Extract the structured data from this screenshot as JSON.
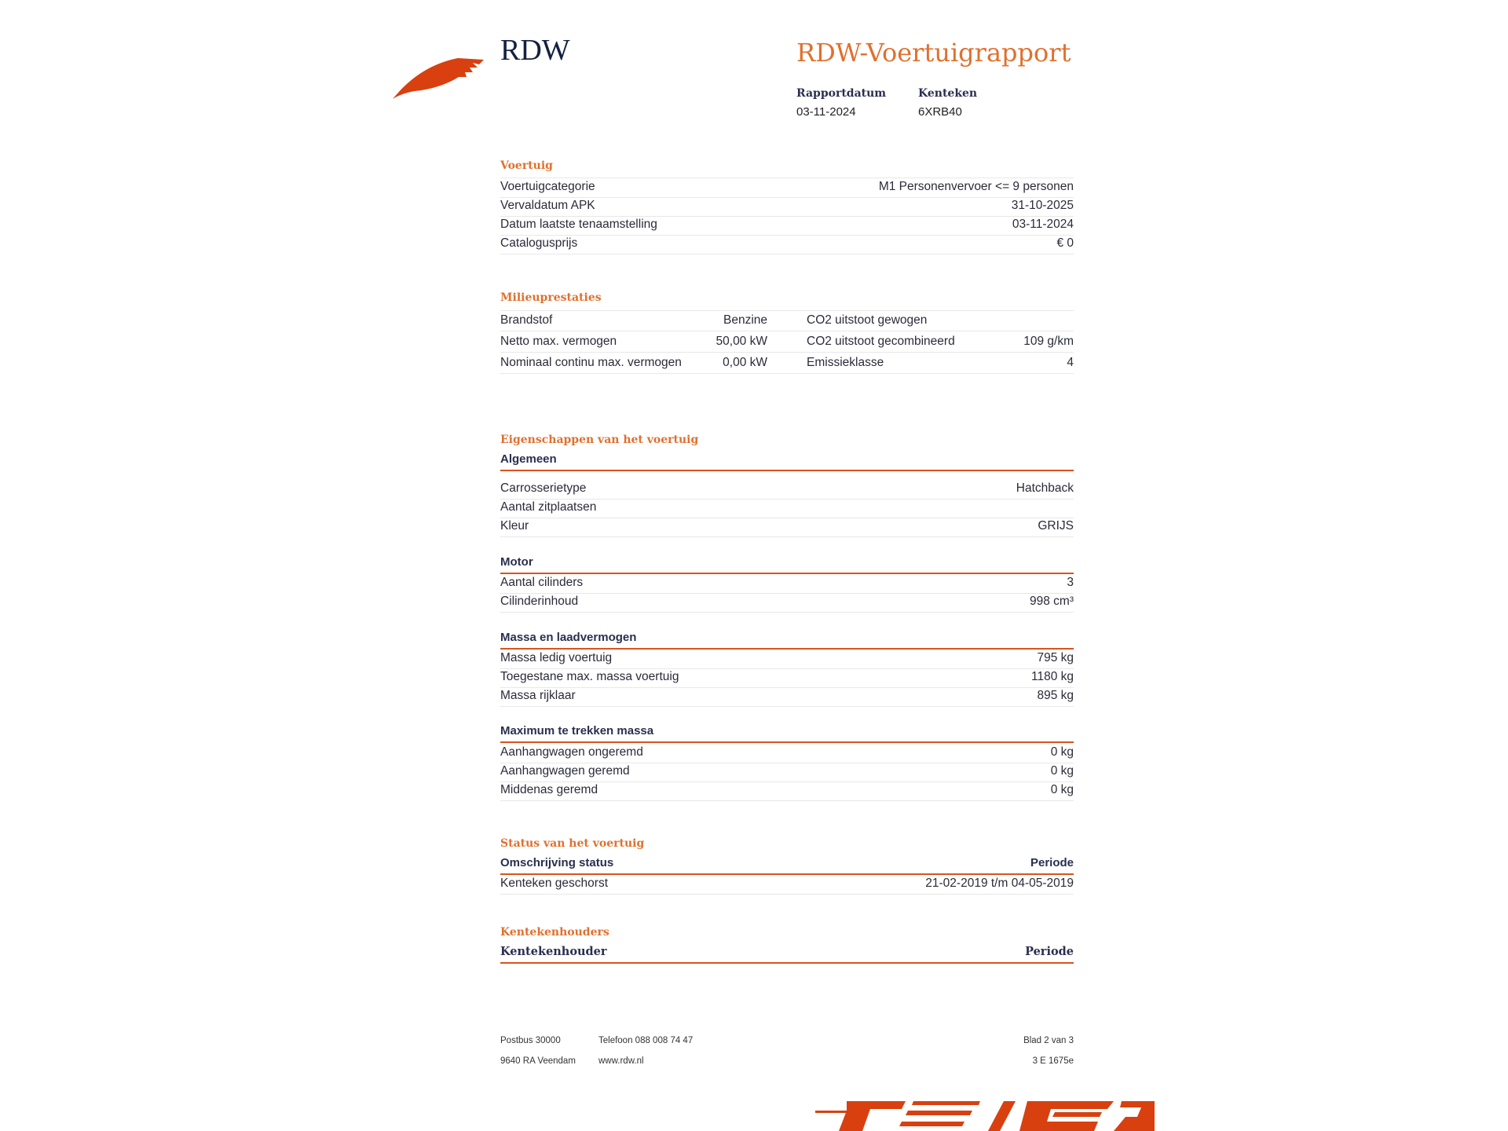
{
  "header": {
    "brand": "RDW",
    "title": "RDW-Voertuigrapport",
    "report_date_label": "Rapportdatum",
    "report_date": "03-11-2024",
    "plate_label": "Kenteken",
    "plate": "6XRB40"
  },
  "vehicle": {
    "heading": "Voertuig",
    "rows": [
      {
        "label": "Voertuigcategorie",
        "value": "M1 Personenvervoer <= 9 personen"
      },
      {
        "label": "Vervaldatum APK",
        "value": "31-10-2025"
      },
      {
        "label": "Datum laatste tenaamstelling",
        "value": "03-11-2024"
      },
      {
        "label": "Catalogusprijs",
        "value": "€ 0"
      }
    ]
  },
  "milieu": {
    "heading": "Milieuprestaties",
    "rows": [
      {
        "label": "Brandstof",
        "value": "Benzine",
        "label2": "CO2 uitstoot gewogen",
        "value2": ""
      },
      {
        "label": "Netto max. vermogen",
        "value": "50,00 kW",
        "label2": "CO2 uitstoot gecombineerd",
        "value2": "109 g/km"
      },
      {
        "label": "Nominaal continu max. vermogen",
        "value": "0,00 kW",
        "label2": "Emissieklasse",
        "value2": "4"
      }
    ]
  },
  "properties": {
    "heading": "Eigenschappen van het voertuig",
    "groups": [
      {
        "title": "Algemeen",
        "rows": [
          {
            "label": "Carrosserietype",
            "value": "Hatchback"
          },
          {
            "label": "Aantal zitplaatsen",
            "value": ""
          },
          {
            "label": "Kleur",
            "value": "GRIJS"
          }
        ]
      },
      {
        "title": "Motor",
        "rows": [
          {
            "label": "Aantal cilinders",
            "value": "3"
          },
          {
            "label": "Cilinderinhoud",
            "value": "998 cm³"
          }
        ]
      },
      {
        "title": "Massa en laadvermogen",
        "rows": [
          {
            "label": "Massa ledig voertuig",
            "value": "795 kg"
          },
          {
            "label": "Toegestane max. massa voertuig",
            "value": "1180 kg"
          },
          {
            "label": "Massa rijklaar",
            "value": "895 kg"
          }
        ]
      },
      {
        "title": "Maximum te trekken massa",
        "rows": [
          {
            "label": "Aanhangwagen ongeremd",
            "value": "0 kg"
          },
          {
            "label": "Aanhangwagen geremd",
            "value": "0 kg"
          },
          {
            "label": "Middenas geremd",
            "value": "0 kg"
          }
        ]
      }
    ]
  },
  "status": {
    "heading": "Status van het voertuig",
    "col_description": "Omschrijving status",
    "col_period": "Periode",
    "rows": [
      {
        "label": "Kenteken geschorst",
        "value": "21-02-2019 t/m 04-05-2019"
      }
    ]
  },
  "holders": {
    "heading": "Kentekenhouders",
    "col_holder": "Kentekenhouder",
    "col_period": "Periode"
  },
  "footer": {
    "address1": "Postbus 30000",
    "address2": "9640 RA Veendam",
    "phone": "Telefoon 088 008 74 47",
    "website": "www.rdw.nl",
    "page": "Blad 2 van 3",
    "code": "3 E 1675e"
  },
  "colors": {
    "accent": "#e0702e",
    "brand_red": "#d9400f",
    "navy": "#15213f"
  }
}
